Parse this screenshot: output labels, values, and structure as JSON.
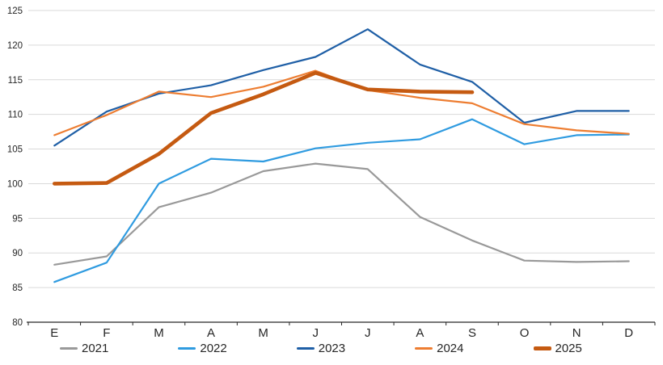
{
  "chart_data": {
    "type": "line",
    "title": "",
    "xlabel": "",
    "ylabel": "",
    "categories": [
      "E",
      "F",
      "M",
      "A",
      "M",
      "J",
      "J",
      "A",
      "S",
      "O",
      "N",
      "D"
    ],
    "y_ticks": [
      "80",
      "85",
      "90",
      "95",
      "100",
      "105",
      "110",
      "115",
      "120",
      "125"
    ],
    "ylim": [
      80,
      125
    ],
    "ytick_step": 5,
    "grid": "horizontal",
    "gridline_color": "#d9d9d9",
    "axis_color": "#262626",
    "tick_label_color": "#262626",
    "legend_position": "bottom",
    "series": [
      {
        "name": "2021",
        "color": "#999999",
        "thick": false,
        "values": [
          88.3,
          89.5,
          96.6,
          98.7,
          101.8,
          102.9,
          102.1,
          95.2,
          91.8,
          88.9,
          88.7,
          88.8
        ]
      },
      {
        "name": "2022",
        "color": "#2f9be0",
        "thick": false,
        "values": [
          85.8,
          88.6,
          100.0,
          103.6,
          103.2,
          105.1,
          105.9,
          106.4,
          109.3,
          105.7,
          107.0,
          107.1
        ]
      },
      {
        "name": "2023",
        "color": "#1f5fa6",
        "thick": false,
        "values": [
          105.5,
          110.4,
          113.0,
          114.2,
          116.4,
          118.3,
          122.3,
          117.2,
          114.7,
          108.8,
          110.5,
          110.5
        ]
      },
      {
        "name": "2024",
        "color": "#ed7d31",
        "thick": false,
        "values": [
          107.0,
          109.9,
          113.3,
          112.5,
          114.0,
          116.3,
          113.5,
          112.4,
          111.6,
          108.6,
          107.7,
          107.2
        ]
      },
      {
        "name": "2025",
        "color": "#c55a11",
        "thick": true,
        "values": [
          100.0,
          100.1,
          104.3,
          110.2,
          112.9,
          116.0,
          113.6,
          113.3,
          113.2,
          null,
          null,
          null
        ]
      }
    ]
  }
}
